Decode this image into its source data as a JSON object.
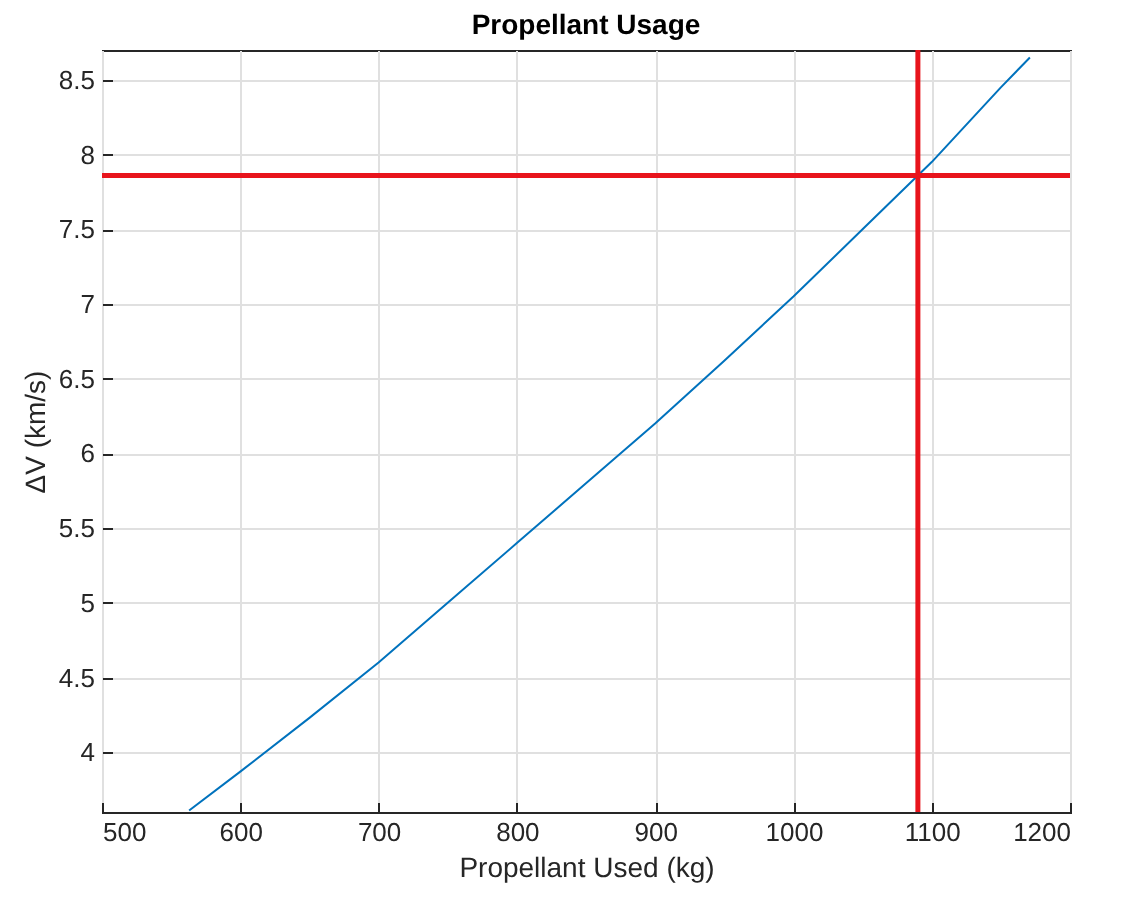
{
  "chart_data": {
    "type": "line",
    "title": "Propellant Usage",
    "xlabel": "Propellant Used (kg)",
    "ylabel": "ΔV (km/s)",
    "x": [
      563,
      600,
      650,
      700,
      750,
      800,
      850,
      900,
      950,
      1000,
      1050,
      1100,
      1150,
      1171
    ],
    "series": [
      {
        "color": "#0072bd",
        "values": [
          3.61,
          3.87,
          4.23,
          4.6,
          5.0,
          5.4,
          5.8,
          6.2,
          6.62,
          7.05,
          7.5,
          7.95,
          8.45,
          8.65
        ]
      }
    ],
    "xlim": [
      500,
      1200
    ],
    "xticks": [
      500,
      600,
      700,
      800,
      900,
      1000,
      1100,
      1200
    ],
    "ylim": [
      3.6,
      8.7
    ],
    "yticks": [
      4,
      4.5,
      5,
      5.5,
      6,
      6.5,
      7,
      7.5,
      8,
      8.5
    ],
    "grid": true,
    "ref_lines": [
      {
        "axis": "x",
        "value": 1090,
        "color": "#e8141c"
      },
      {
        "axis": "y",
        "value": 7.86,
        "color": "#e8141c"
      }
    ]
  }
}
